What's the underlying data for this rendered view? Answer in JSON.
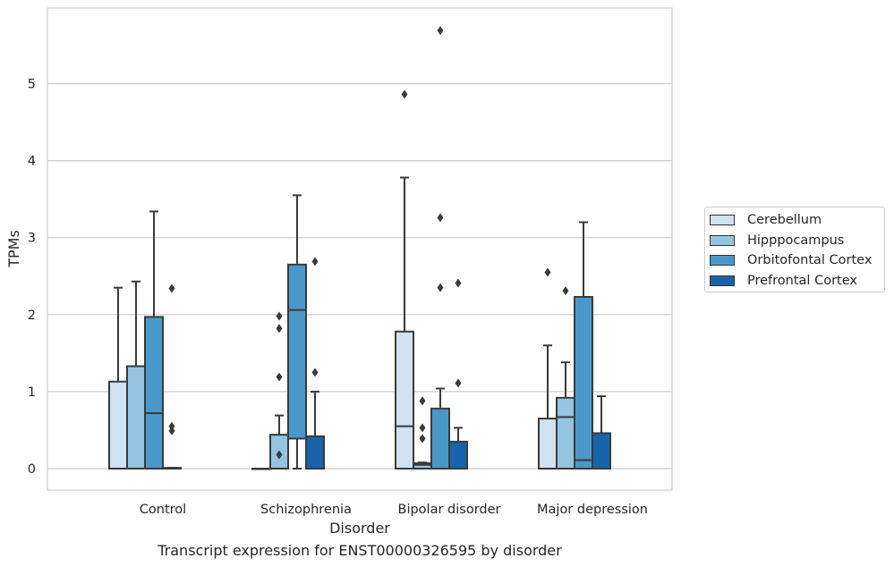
{
  "chart_data": {
    "type": "box",
    "xlabel": "Disorder",
    "ylabel": "TPMs",
    "caption": "Transcript expression for ENST00000326595 by disorder",
    "categories": [
      "Control",
      "Schizophrenia",
      "Bipolar disorder",
      "Major depression"
    ],
    "ylim": [
      -0.28,
      5.98
    ],
    "yticks": [
      0,
      1,
      2,
      3,
      4,
      5
    ],
    "grid": "horizontal",
    "legend_position": "outside-right",
    "series": [
      {
        "name": "Cerebellum",
        "color": "#d0e1f2",
        "boxes": [
          {
            "q1": 0,
            "median": 0,
            "q3": 1.13,
            "whisker_low": 0,
            "whisker_high": 2.35,
            "outliers": []
          },
          {
            "q1": 0,
            "median": 0,
            "q3": 0,
            "whisker_low": 0,
            "whisker_high": 0,
            "outliers": []
          },
          {
            "q1": 0,
            "median": 0.55,
            "q3": 1.78,
            "whisker_low": 0,
            "whisker_high": 3.78,
            "outliers": [
              4.86
            ]
          },
          {
            "q1": 0,
            "median": 0,
            "q3": 0.65,
            "whisker_low": 0,
            "whisker_high": 1.6,
            "outliers": [
              2.55
            ]
          }
        ]
      },
      {
        "name": "Hipppocampus",
        "color": "#94c4df",
        "boxes": [
          {
            "q1": 0,
            "median": 0,
            "q3": 1.33,
            "whisker_low": 0,
            "whisker_high": 2.43,
            "outliers": []
          },
          {
            "q1": 0,
            "median": 0,
            "q3": 0.44,
            "whisker_low": 0,
            "whisker_high": 0.69,
            "outliers": [
              0.18,
              1.19,
              1.82,
              1.98
            ]
          },
          {
            "q1": 0,
            "median": 0.05,
            "q3": 0.07,
            "whisker_low": 0,
            "whisker_high": 0.08,
            "outliers": [
              0.39,
              0.53,
              0.88
            ]
          },
          {
            "q1": 0,
            "median": 0.67,
            "q3": 0.92,
            "whisker_low": 0,
            "whisker_high": 1.38,
            "outliers": [
              2.31
            ]
          }
        ]
      },
      {
        "name": "Orbitofontal Cortex",
        "color": "#4a98c9",
        "boxes": [
          {
            "q1": 0,
            "median": 0.72,
            "q3": 1.97,
            "whisker_low": 0,
            "whisker_high": 3.34,
            "outliers": []
          },
          {
            "q1": 0.39,
            "median": 2.06,
            "q3": 2.65,
            "whisker_low": 0,
            "whisker_high": 3.55,
            "outliers": []
          },
          {
            "q1": 0,
            "median": 0,
            "q3": 0.78,
            "whisker_low": 0,
            "whisker_high": 1.04,
            "outliers": [
              2.35,
              3.26,
              5.69
            ]
          },
          {
            "q1": 0,
            "median": 0.11,
            "q3": 2.23,
            "whisker_low": 0,
            "whisker_high": 3.2,
            "outliers": []
          }
        ]
      },
      {
        "name": "Prefrontal Cortex",
        "color": "#1764ab",
        "boxes": [
          {
            "q1": 0,
            "median": 0,
            "q3": 0.01,
            "whisker_low": 0,
            "whisker_high": 0.01,
            "outliers": [
              0.49,
              0.55,
              2.34
            ]
          },
          {
            "q1": 0,
            "median": 0,
            "q3": 0.42,
            "whisker_low": 0,
            "whisker_high": 1.0,
            "outliers": [
              1.25,
              2.69
            ]
          },
          {
            "q1": 0,
            "median": 0,
            "q3": 0.35,
            "whisker_low": 0,
            "whisker_high": 0.53,
            "outliers": [
              1.11,
              2.41
            ]
          },
          {
            "q1": 0,
            "median": 0,
            "q3": 0.46,
            "whisker_low": 0,
            "whisker_high": 0.94,
            "outliers": []
          }
        ]
      }
    ]
  }
}
